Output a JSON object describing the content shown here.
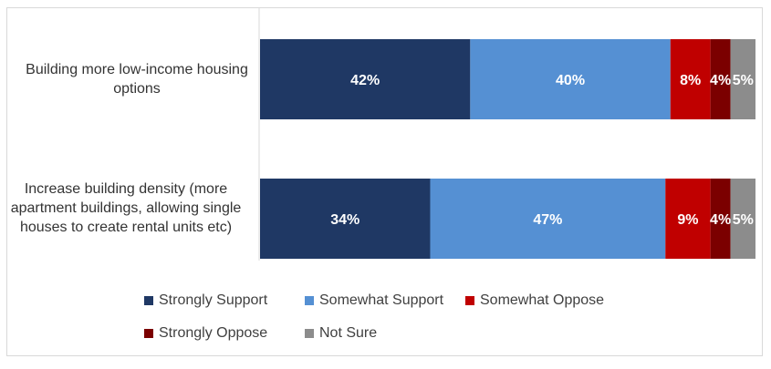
{
  "chart_data": {
    "type": "bar",
    "orientation": "horizontal",
    "stacked": true,
    "categories": [
      "Building more low-income housing options",
      "Increase building density (more apartment buildings, allowing single houses to create rental units etc)"
    ],
    "series": [
      {
        "name": "Strongly Support",
        "color": "#1f3864",
        "values": [
          42,
          34
        ],
        "labels": [
          "42%",
          "34%"
        ]
      },
      {
        "name": "Somewhat Support",
        "color": "#5590d3",
        "values": [
          40,
          47
        ],
        "labels": [
          "40%",
          "47%"
        ]
      },
      {
        "name": "Somewhat Oppose",
        "color": "#c00000",
        "values": [
          8,
          9
        ],
        "labels": [
          "8%",
          "9%"
        ]
      },
      {
        "name": "Strongly Oppose",
        "color": "#7b0000",
        "values": [
          4,
          4
        ],
        "labels": [
          "4%",
          "4%"
        ]
      },
      {
        "name": "Not Sure",
        "color": "#8c8c8c",
        "values": [
          5,
          5
        ],
        "labels": [
          "5%",
          "5%"
        ]
      }
    ],
    "xlim": [
      0,
      100
    ],
    "grid": false,
    "legend_position": "bottom"
  }
}
